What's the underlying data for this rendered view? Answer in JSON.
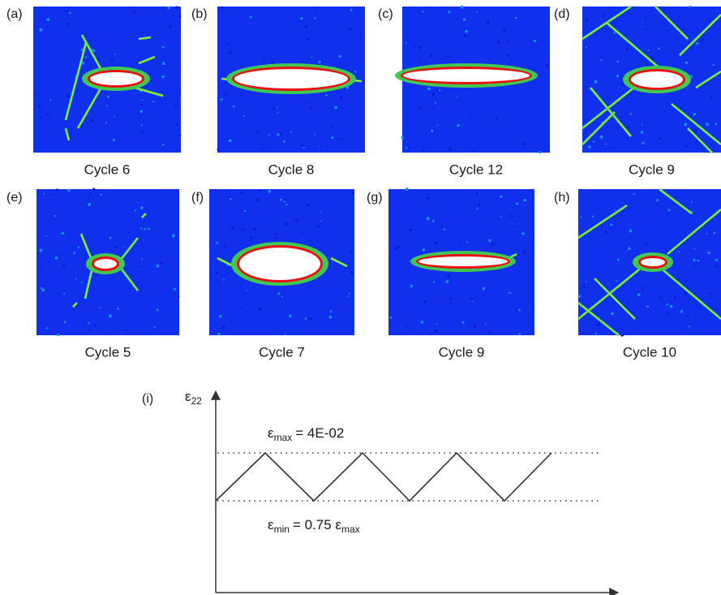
{
  "panels": [
    {
      "label": "(a)",
      "caption": "Cycle 6"
    },
    {
      "label": "(b)",
      "caption": "Cycle 8"
    },
    {
      "label": "(c)",
      "caption": "Cycle 12"
    },
    {
      "label": "(d)",
      "caption": "Cycle 9"
    },
    {
      "label": "(e)",
      "caption": "Cycle 5"
    },
    {
      "label": "(f)",
      "caption": "Cycle 7"
    },
    {
      "label": "(g)",
      "caption": "Cycle 9"
    },
    {
      "label": "(h)",
      "caption": "Cycle 10"
    }
  ],
  "diagram": {
    "label": "(i)",
    "y_label": [
      {
        "text": "ε"
      },
      {
        "sub": "22"
      }
    ],
    "max_label": [
      {
        "text": "ε"
      },
      {
        "sub": "max"
      },
      {
        "text": "= 4E-02"
      }
    ],
    "min_label": [
      {
        "text": "ε"
      },
      {
        "sub": "min"
      },
      {
        "text": "= 0.75 ε"
      },
      {
        "sub": "max"
      }
    ]
  }
}
